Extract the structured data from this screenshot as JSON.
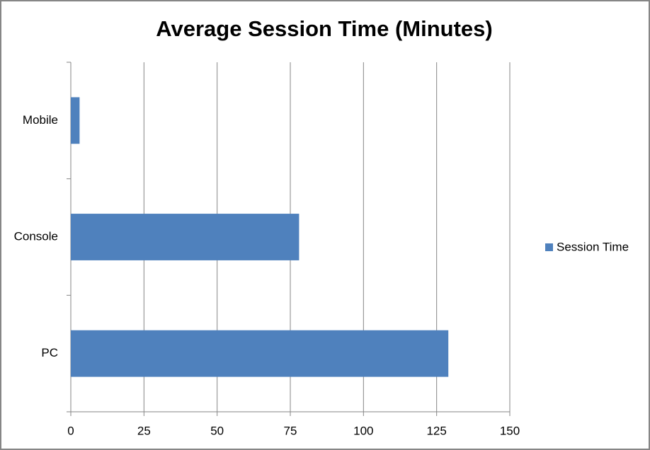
{
  "chart_data": {
    "type": "bar",
    "orientation": "horizontal",
    "title": "Average Session Time (Minutes)",
    "categories": [
      "Mobile",
      "Console",
      "PC"
    ],
    "series": [
      {
        "name": "Session Time",
        "color": "#4f81bd",
        "values": [
          3,
          78,
          129
        ]
      }
    ],
    "xlim": [
      0,
      150
    ],
    "xticks": [
      0,
      25,
      50,
      75,
      100,
      125,
      150
    ],
    "grid": true,
    "legend": "right"
  }
}
